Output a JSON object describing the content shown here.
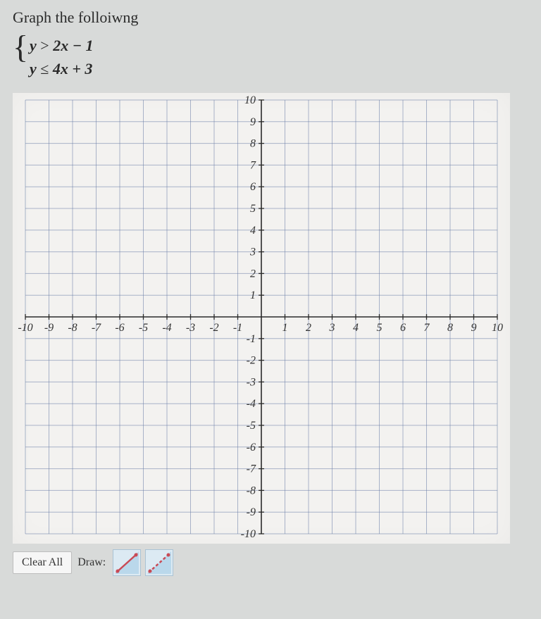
{
  "prompt": {
    "title": "Graph the folloiwng",
    "ineq1": {
      "lhs": "y",
      "op": ">",
      "rhs": "2x − 1"
    },
    "ineq2": {
      "lhs": "y",
      "op": "≤",
      "rhs": "4x + 3"
    }
  },
  "chart": {
    "type": "cartesian-grid",
    "xlim": [
      -10,
      10
    ],
    "ylim": [
      -10,
      10
    ],
    "xtick_step": 1,
    "ytick_step": 1,
    "x_labels": [
      "-10",
      "-9",
      "-8",
      "-7",
      "-6",
      "-5",
      "-4",
      "-3",
      "-2",
      "-1",
      "1",
      "2",
      "3",
      "4",
      "5",
      "6",
      "7",
      "8",
      "9",
      "10"
    ],
    "y_labels_pos": [
      "10",
      "9",
      "8",
      "7",
      "6",
      "5",
      "4",
      "3",
      "2",
      "1"
    ],
    "y_labels_neg": [
      "-1",
      "-2",
      "-3",
      "-4",
      "-5",
      "-6",
      "-7",
      "-8",
      "-9",
      "-10"
    ],
    "background_color": "#f3f2f0",
    "grid_color": "#6b7fa8",
    "grid_opacity": 0.55,
    "axis_color": "#2b2b2b",
    "label_color": "#333333",
    "label_fontsize": 16
  },
  "toolbar": {
    "clear_label": "Clear All",
    "draw_label": "Draw:",
    "tools": [
      {
        "name": "solid-line-shade",
        "line_color": "#c94a55",
        "line_style": "solid",
        "shade_color": "#6aa8d2"
      },
      {
        "name": "dashed-line-shade",
        "line_color": "#c94a55",
        "line_style": "dashed",
        "shade_color": "#6aa8d2"
      }
    ]
  }
}
